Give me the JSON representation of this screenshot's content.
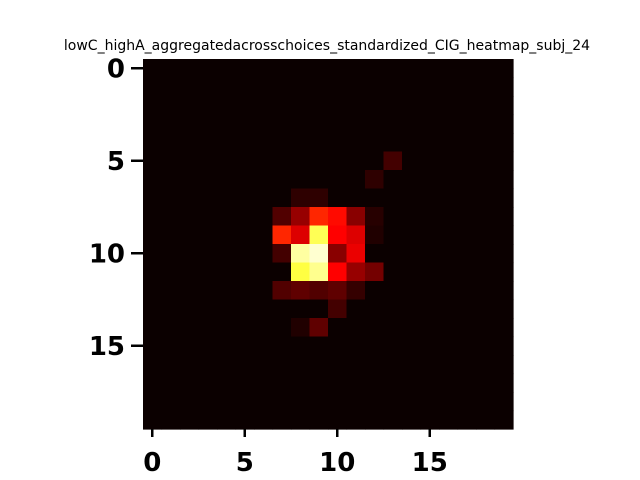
{
  "chart_data": {
    "type": "heatmap",
    "title": "lowC_highA_aggregatedacrosschoices_standardized_CIG_heatmap_subj_24",
    "xlabel": "",
    "ylabel": "",
    "rows": 20,
    "cols": 20,
    "xlim": [
      -0.5,
      19.5
    ],
    "ylim": [
      19.5,
      -0.5
    ],
    "xticks": [
      0,
      5,
      10,
      15
    ],
    "yticks": [
      0,
      5,
      10,
      15
    ],
    "colormap": "hot",
    "grid": false,
    "hot_cells": [
      {
        "x": 13,
        "y": 5,
        "v": 0.08
      },
      {
        "x": 12,
        "y": 6,
        "v": 0.05
      },
      {
        "x": 8,
        "y": 7,
        "v": 0.05
      },
      {
        "x": 9,
        "y": 7,
        "v": 0.05
      },
      {
        "x": 7,
        "y": 8,
        "v": 0.1
      },
      {
        "x": 8,
        "y": 8,
        "v": 0.2
      },
      {
        "x": 9,
        "y": 8,
        "v": 0.42
      },
      {
        "x": 10,
        "y": 8,
        "v": 0.38
      },
      {
        "x": 11,
        "y": 8,
        "v": 0.18
      },
      {
        "x": 12,
        "y": 8,
        "v": 0.04
      },
      {
        "x": 7,
        "y": 9,
        "v": 0.42
      },
      {
        "x": 8,
        "y": 9,
        "v": 0.3
      },
      {
        "x": 9,
        "y": 9,
        "v": 0.82
      },
      {
        "x": 10,
        "y": 9,
        "v": 0.35
      },
      {
        "x": 11,
        "y": 9,
        "v": 0.3
      },
      {
        "x": 12,
        "y": 9,
        "v": 0.03
      },
      {
        "x": 7,
        "y": 10,
        "v": 0.08
      },
      {
        "x": 8,
        "y": 10,
        "v": 0.9
      },
      {
        "x": 9,
        "y": 10,
        "v": 0.95
      },
      {
        "x": 10,
        "y": 10,
        "v": 0.18
      },
      {
        "x": 11,
        "y": 10,
        "v": 0.32
      },
      {
        "x": 8,
        "y": 11,
        "v": 0.8
      },
      {
        "x": 9,
        "y": 11,
        "v": 0.88
      },
      {
        "x": 10,
        "y": 11,
        "v": 0.35
      },
      {
        "x": 11,
        "y": 11,
        "v": 0.2
      },
      {
        "x": 12,
        "y": 11,
        "v": 0.15
      },
      {
        "x": 7,
        "y": 12,
        "v": 0.1
      },
      {
        "x": 8,
        "y": 12,
        "v": 0.12
      },
      {
        "x": 9,
        "y": 12,
        "v": 0.1
      },
      {
        "x": 10,
        "y": 12,
        "v": 0.12
      },
      {
        "x": 11,
        "y": 12,
        "v": 0.06
      },
      {
        "x": 10,
        "y": 13,
        "v": 0.08
      },
      {
        "x": 9,
        "y": 14,
        "v": 0.12
      },
      {
        "x": 8,
        "y": 14,
        "v": 0.03
      }
    ]
  }
}
